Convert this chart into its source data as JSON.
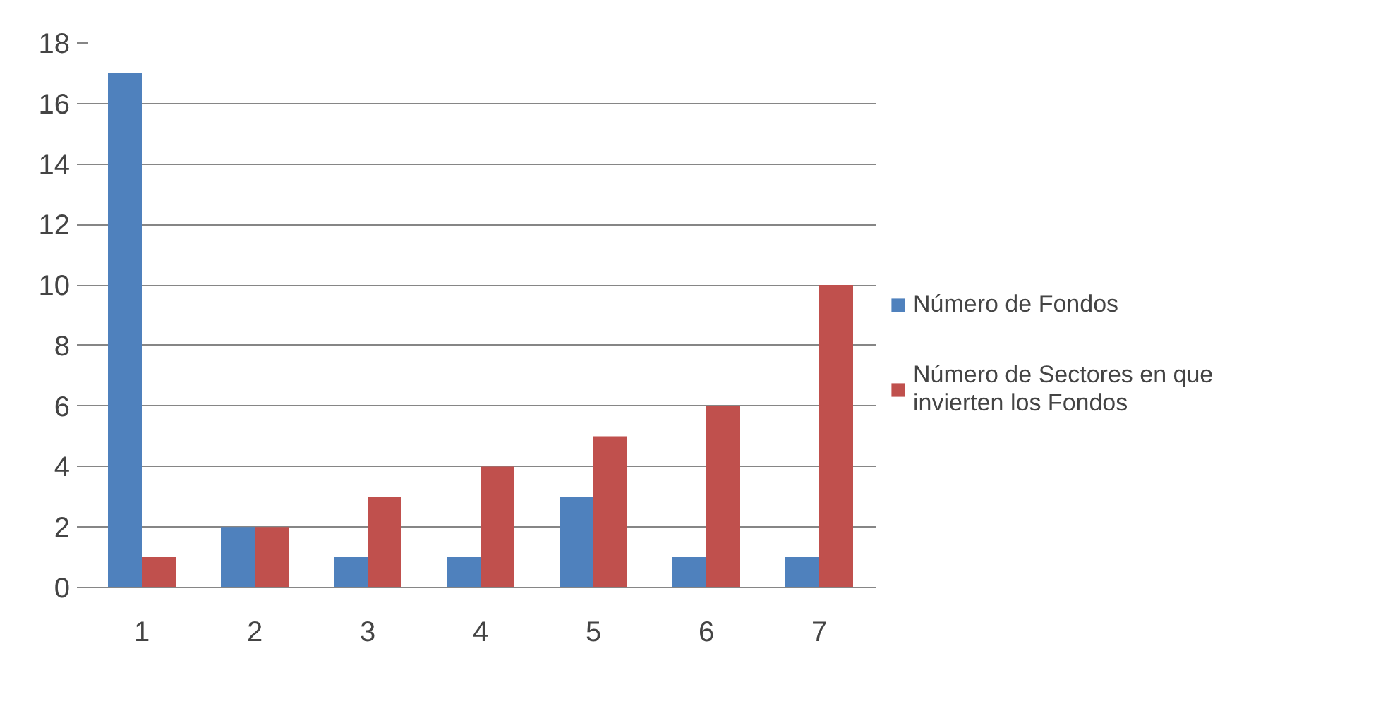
{
  "chart_data": {
    "type": "bar",
    "categories": [
      "1",
      "2",
      "3",
      "4",
      "5",
      "6",
      "7"
    ],
    "series": [
      {
        "name": "Número de Fondos",
        "color": "#4f81bd",
        "values": [
          17,
          2,
          1,
          1,
          3,
          1,
          1
        ]
      },
      {
        "name": "Número de Sectores en que invierten los Fondos",
        "color": "#c0504d",
        "values": [
          1,
          2,
          3,
          4,
          5,
          6,
          10
        ]
      }
    ],
    "ylim": [
      0,
      18
    ],
    "yticks": [
      0,
      2,
      4,
      6,
      8,
      10,
      12,
      14,
      16,
      18
    ],
    "grid": "y",
    "legend": "right"
  }
}
